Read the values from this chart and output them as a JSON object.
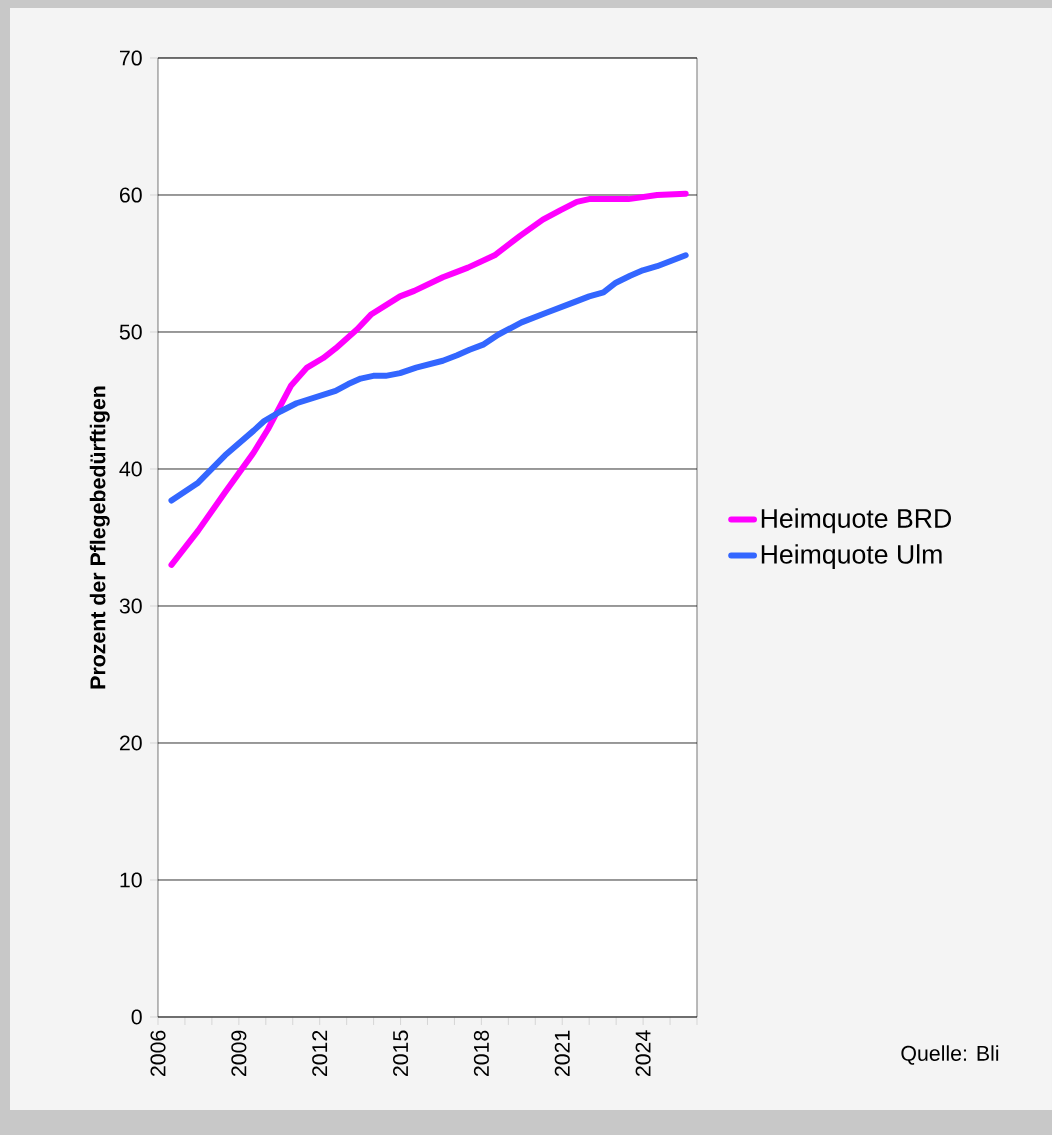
{
  "chart_data": {
    "type": "line",
    "ylabel": "Prozent der Pflegebedürftigen",
    "annotations": [
      "Quelle:  Bli"
    ],
    "series": [
      {
        "name": "Heimquote BRD",
        "color": "#ff00ff",
        "x": [
          2006.5,
          2007.49,
          2008.49,
          2009.55,
          2010.08,
          2010.94,
          2011.53,
          2012.13,
          2012.59,
          2013.39,
          2013.92,
          2014.98,
          2015.51,
          2016.57,
          2016.97,
          2017.5,
          2018.49,
          2019.42,
          2020.28,
          2020.94,
          2021.54,
          2022.0,
          2023.46,
          2024.52,
          2025.58
        ],
        "values": [
          33.0,
          35.5,
          38.3,
          41.2,
          42.9,
          46.1,
          47.4,
          48.1,
          48.8,
          50.2,
          51.3,
          52.6,
          53.0,
          54.0,
          54.3,
          54.7,
          55.6,
          57.0,
          58.2,
          58.9,
          59.5,
          59.7,
          59.7,
          60.0,
          60.1
        ]
      },
      {
        "name": "Heimquote Ulm",
        "color": "#3366ff",
        "x": [
          2006.5,
          2007.49,
          2008.49,
          2009.55,
          2009.94,
          2010.54,
          2011.14,
          2012.59,
          2013.06,
          2013.52,
          2013.99,
          2014.45,
          2014.98,
          2015.58,
          2016.57,
          2017.1,
          2017.56,
          2018.09,
          2018.62,
          2019.49,
          2020.41,
          2021.47,
          2022.0,
          2022.53,
          2022.99,
          2023.52,
          2023.99,
          2024.52,
          2025.58
        ],
        "values": [
          37.7,
          39.0,
          41.0,
          42.8,
          43.5,
          44.2,
          44.8,
          45.7,
          46.2,
          46.6,
          46.8,
          46.8,
          47.0,
          47.4,
          47.9,
          48.3,
          48.7,
          49.1,
          49.8,
          50.7,
          51.4,
          52.2,
          52.6,
          52.9,
          53.6,
          54.1,
          54.5,
          54.8,
          55.6
        ]
      }
    ],
    "xlim": [
      2006,
      2026
    ],
    "xticks": [
      2006,
      {
        "value": 2007,
        "label": null
      },
      {
        "value": 2008,
        "label": null
      },
      2009,
      {
        "value": 2010,
        "label": null
      },
      {
        "value": 2011,
        "label": null
      },
      2012,
      {
        "value": 2013,
        "label": null
      },
      {
        "value": 2014,
        "label": null
      },
      2015,
      {
        "value": 2016,
        "label": null
      },
      {
        "value": 2017,
        "label": null
      },
      2018,
      {
        "value": 2019,
        "label": null
      },
      {
        "value": 2020,
        "label": null
      },
      2021,
      {
        "value": 2022,
        "label": null
      },
      {
        "value": 2023,
        "label": null
      },
      2024,
      {
        "value": 2025,
        "label": null
      },
      {
        "value": 2026,
        "label": null
      }
    ],
    "ylim": [
      0,
      70
    ],
    "yticks": [
      0,
      10,
      20,
      30,
      40,
      50,
      60,
      70
    ],
    "grid": "y",
    "legend": "right",
    "marker": "none",
    "line_style": "solid"
  }
}
